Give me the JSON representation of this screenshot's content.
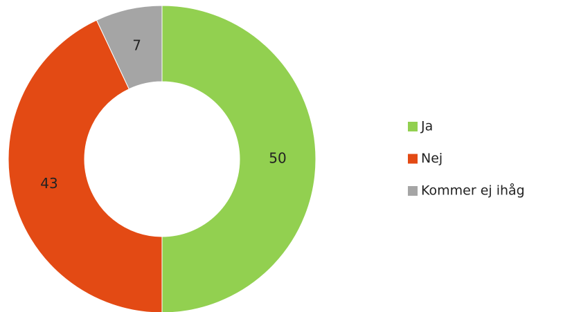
{
  "chart_data": {
    "type": "donut",
    "categories": [
      "Ja",
      "Nej",
      "Kommer ej ihåg"
    ],
    "values": [
      50,
      43,
      7
    ],
    "colors": [
      "#92d050",
      "#e34a14",
      "#a5a5a5"
    ],
    "legend": "right"
  }
}
